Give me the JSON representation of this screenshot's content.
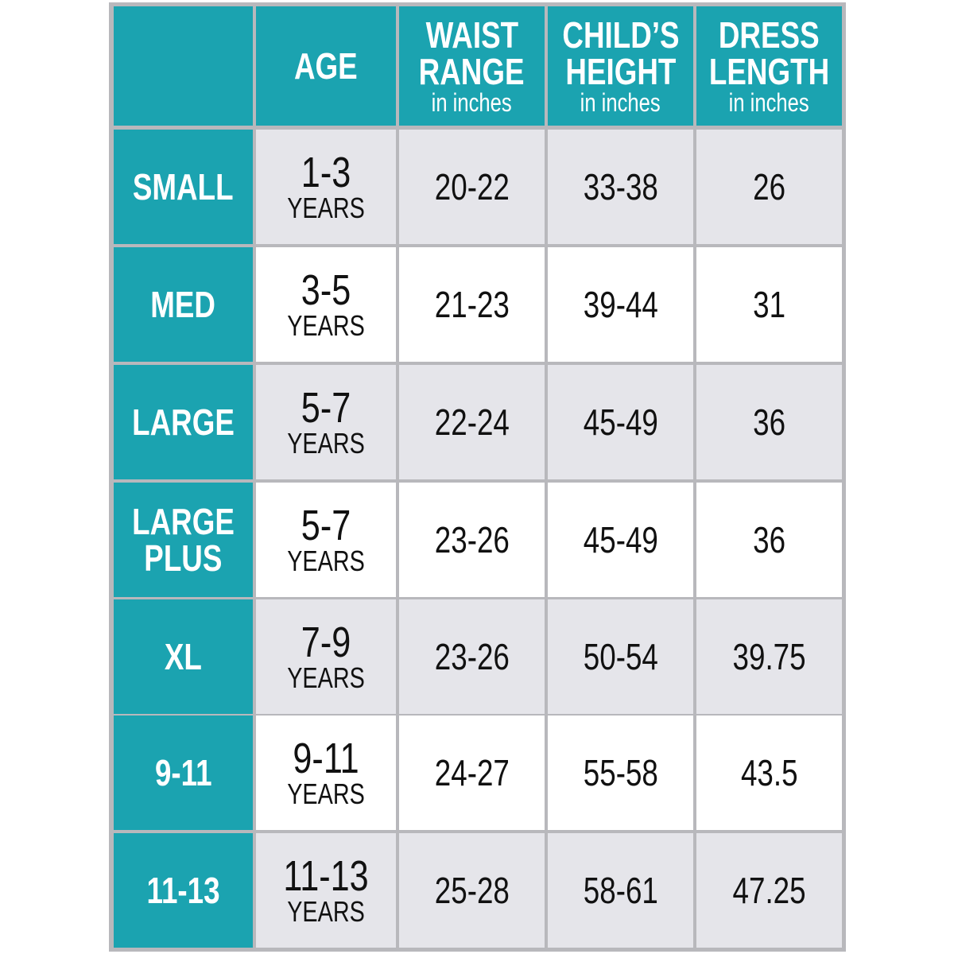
{
  "table": {
    "header": [
      {
        "title": [
          "AGE"
        ]
      },
      {
        "title": [
          "WAIST",
          "RANGE"
        ],
        "subtitle": "in inches"
      },
      {
        "title": [
          "CHILD’S",
          "HEIGHT"
        ],
        "subtitle": "in inches"
      },
      {
        "title": [
          "DRESS",
          "LENGTH"
        ],
        "subtitle": "in inches"
      }
    ],
    "rows": [
      {
        "size": [
          "SMALL"
        ],
        "age": "1-3",
        "age_unit": "YEARS",
        "waist": "20-22",
        "height": "33-38",
        "length": "26"
      },
      {
        "size": [
          "MED"
        ],
        "age": "3-5",
        "age_unit": "YEARS",
        "waist": "21-23",
        "height": "39-44",
        "length": "31"
      },
      {
        "size": [
          "LARGE"
        ],
        "age": "5-7",
        "age_unit": "YEARS",
        "waist": "22-24",
        "height": "45-49",
        "length": "36"
      },
      {
        "size": [
          "LARGE",
          "PLUS"
        ],
        "age": "5-7",
        "age_unit": "YEARS",
        "waist": "23-26",
        "height": "45-49",
        "length": "36"
      },
      {
        "size": [
          "XL"
        ],
        "age": "7-9",
        "age_unit": "YEARS",
        "waist": "23-26",
        "height": "50-54",
        "length": "39.75"
      },
      {
        "size": [
          "9-11"
        ],
        "age": "9-11",
        "age_unit": "YEARS",
        "waist": "24-27",
        "height": "55-58",
        "length": "43.5"
      },
      {
        "size": [
          "11-13"
        ],
        "age": "11-13",
        "age_unit": "YEARS",
        "waist": "25-28",
        "height": "58-61",
        "length": "47.25"
      }
    ]
  }
}
